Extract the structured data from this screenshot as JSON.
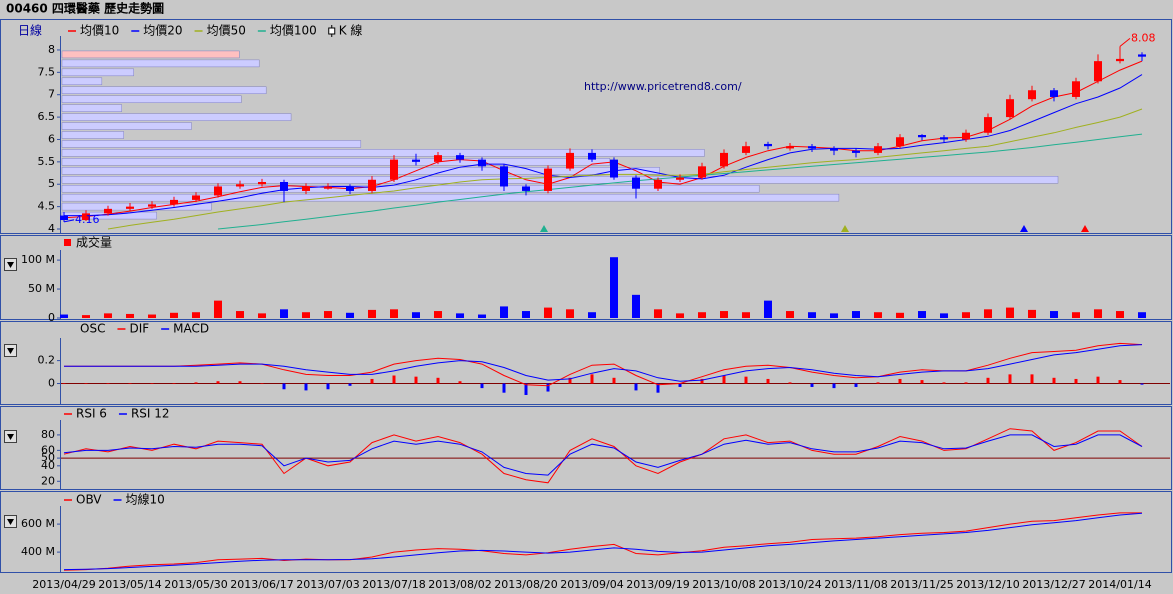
{
  "chart_data": [
    {
      "type": "candlestick",
      "title": "00460 四環醫藥  歷史走勢圖",
      "period": "日線",
      "watermark": "http://www.pricetrend8.com/",
      "candle_name": "K 線",
      "up_color": "#ff0000",
      "down_color": "#0000ff",
      "open": [
        4.3,
        4.2,
        4.35,
        4.45,
        4.5,
        4.55,
        4.65,
        4.75,
        4.95,
        5.0,
        5.05,
        4.85,
        4.9,
        4.95,
        4.85,
        5.1,
        5.55,
        5.5,
        5.65,
        5.55,
        5.4,
        4.95,
        4.85,
        5.35,
        5.7,
        5.55,
        5.15,
        4.9,
        5.1,
        5.15,
        5.4,
        5.7,
        5.9,
        5.8,
        5.85,
        5.8,
        5.75,
        5.7,
        5.85,
        6.1,
        6.05,
        6.0,
        6.15,
        6.5,
        6.9,
        7.1,
        6.95,
        7.3,
        7.75,
        7.9
      ],
      "high": [
        4.38,
        4.42,
        4.52,
        4.58,
        4.62,
        4.72,
        4.82,
        5.02,
        5.08,
        5.12,
        5.1,
        5.02,
        5.02,
        5.0,
        5.18,
        5.65,
        5.68,
        5.72,
        5.7,
        5.6,
        5.45,
        5.0,
        5.42,
        5.8,
        5.78,
        5.6,
        5.2,
        5.15,
        5.22,
        5.48,
        5.78,
        5.95,
        5.95,
        5.92,
        5.9,
        5.85,
        5.8,
        5.92,
        6.12,
        6.12,
        6.1,
        6.22,
        6.58,
        7.0,
        7.2,
        7.15,
        7.38,
        7.9,
        8.08,
        7.95
      ],
      "low": [
        4.16,
        4.18,
        4.3,
        4.4,
        4.45,
        4.5,
        4.6,
        4.7,
        4.9,
        4.95,
        4.6,
        4.78,
        4.88,
        4.78,
        4.8,
        5.05,
        5.42,
        5.45,
        5.48,
        5.3,
        4.85,
        4.75,
        4.8,
        5.3,
        5.5,
        5.1,
        4.68,
        4.85,
        5.05,
        5.1,
        5.35,
        5.65,
        5.78,
        5.75,
        5.72,
        5.65,
        5.6,
        5.65,
        5.8,
        5.98,
        5.92,
        5.95,
        6.1,
        6.45,
        6.85,
        6.85,
        6.9,
        7.25,
        7.7,
        7.75
      ],
      "close": [
        4.2,
        4.35,
        4.45,
        4.5,
        4.55,
        4.65,
        4.75,
        4.95,
        5.0,
        5.05,
        4.85,
        4.95,
        4.95,
        4.85,
        5.1,
        5.55,
        5.5,
        5.65,
        5.55,
        5.4,
        4.95,
        4.85,
        5.35,
        5.7,
        5.55,
        5.15,
        4.9,
        5.1,
        5.15,
        5.4,
        5.7,
        5.85,
        5.85,
        5.85,
        5.8,
        5.75,
        5.7,
        5.85,
        6.05,
        6.05,
        6.0,
        6.15,
        6.5,
        6.9,
        7.1,
        6.95,
        7.3,
        7.75,
        7.8,
        7.85
      ],
      "series": [
        {
          "name": "均價10",
          "color": "#ff0000",
          "values": [
            4.25,
            4.28,
            4.33,
            4.4,
            4.48,
            4.55,
            4.62,
            4.72,
            4.83,
            4.93,
            4.97,
            4.95,
            4.93,
            4.9,
            4.95,
            5.1,
            5.3,
            5.5,
            5.55,
            5.52,
            5.3,
            5.1,
            5.0,
            5.15,
            5.45,
            5.5,
            5.3,
            5.05,
            5.0,
            5.15,
            5.4,
            5.6,
            5.75,
            5.85,
            5.83,
            5.8,
            5.75,
            5.75,
            5.85,
            5.97,
            6.03,
            6.05,
            6.2,
            6.45,
            6.75,
            6.95,
            7.05,
            7.3,
            7.55,
            7.75
          ]
        },
        {
          "name": "均價20",
          "color": "#0000ff",
          "values": [
            4.3,
            4.3,
            4.32,
            4.36,
            4.42,
            4.48,
            4.55,
            4.62,
            4.7,
            4.8,
            4.88,
            4.92,
            4.95,
            4.95,
            4.93,
            4.98,
            5.1,
            5.25,
            5.38,
            5.45,
            5.45,
            5.35,
            5.2,
            5.15,
            5.2,
            5.3,
            5.35,
            5.25,
            5.15,
            5.12,
            5.2,
            5.38,
            5.55,
            5.7,
            5.78,
            5.8,
            5.8,
            5.78,
            5.8,
            5.87,
            5.93,
            6.0,
            6.07,
            6.2,
            6.4,
            6.6,
            6.8,
            6.95,
            7.15,
            7.45
          ]
        },
        {
          "name": "均價50",
          "color": "#a0b020",
          "values": [
            null,
            null,
            4.0,
            4.08,
            4.15,
            4.22,
            4.3,
            4.38,
            4.45,
            4.52,
            4.6,
            4.65,
            4.7,
            4.75,
            4.8,
            4.85,
            4.92,
            4.98,
            5.05,
            5.1,
            5.12,
            5.13,
            5.15,
            5.18,
            5.2,
            5.22,
            5.22,
            5.2,
            5.2,
            5.22,
            5.28,
            5.33,
            5.38,
            5.43,
            5.48,
            5.52,
            5.55,
            5.6,
            5.65,
            5.7,
            5.75,
            5.8,
            5.85,
            5.95,
            6.05,
            6.15,
            6.27,
            6.38,
            6.5,
            6.68
          ]
        },
        {
          "name": "均價100",
          "color": "#20b090",
          "values": [
            null,
            null,
            null,
            null,
            null,
            null,
            null,
            4.0,
            4.05,
            4.1,
            4.16,
            4.22,
            4.28,
            4.34,
            4.4,
            4.47,
            4.53,
            4.6,
            4.66,
            4.72,
            4.78,
            4.83,
            4.88,
            4.93,
            4.98,
            5.03,
            5.08,
            5.12,
            5.16,
            5.2,
            5.24,
            5.28,
            5.32,
            5.36,
            5.4,
            5.44,
            5.48,
            5.52,
            5.56,
            5.6,
            5.64,
            5.68,
            5.72,
            5.77,
            5.82,
            5.88,
            5.94,
            6.0,
            6.06,
            6.12
          ]
        }
      ],
      "volume_profile": {
        "prices": [
          4.3,
          4.5,
          4.7,
          4.9,
          5.1,
          5.3,
          5.5,
          5.7,
          5.9,
          6.1,
          6.3,
          6.5,
          6.7,
          6.9,
          7.1,
          7.3,
          7.5,
          7.7,
          7.9
        ],
        "values": [
          95,
          150,
          780,
          700,
          1000,
          600,
          550,
          645,
          300,
          62,
          130,
          230,
          60,
          180,
          205,
          40,
          72,
          198,
          178
        ],
        "color": "#ccccff",
        "current_color": "#ffc0c0"
      },
      "ylim": [
        4,
        8.2
      ],
      "yticks": [
        4,
        4.5,
        5,
        5.5,
        6,
        6.5,
        7,
        7.5,
        8
      ]
    },
    {
      "type": "bar",
      "series": [
        {
          "name": "成交量",
          "color": "#ff0000",
          "values": [
            6,
            5,
            8,
            7,
            6,
            9,
            10,
            30,
            12,
            8,
            15,
            10,
            12,
            9,
            14,
            15,
            10,
            12,
            8,
            6,
            20,
            12,
            18,
            15,
            10,
            105,
            40,
            15,
            8,
            10,
            12,
            10,
            30,
            12,
            10,
            8,
            12,
            10,
            9,
            12,
            8,
            10,
            15,
            18,
            14,
            12,
            10,
            15,
            12,
            10
          ]
        }
      ],
      "down_color": "#0000ff",
      "ylim": [
        0,
        114
      ],
      "yticks": [
        0,
        {
          "value": 50,
          "label": "50 M"
        },
        {
          "value": 100,
          "label": "100 M"
        }
      ]
    },
    {
      "type": "line",
      "series": [
        {
          "name": "OSC",
          "style": "bar",
          "color": "#ff0000",
          "negative_color": "#0000ff",
          "values": [
            0,
            0,
            0,
            0,
            0,
            0,
            0.01,
            0.02,
            0.02,
            0,
            -0.05,
            -0.06,
            -0.05,
            -0.02,
            0.04,
            0.07,
            0.06,
            0.05,
            0.02,
            -0.04,
            -0.08,
            -0.1,
            -0.07,
            0.05,
            0.08,
            0.05,
            -0.06,
            -0.08,
            -0.03,
            0.04,
            0.07,
            0.06,
            0.04,
            0.01,
            -0.03,
            -0.04,
            -0.03,
            0.01,
            0.04,
            0.03,
            0.01,
            0.01,
            0.05,
            0.08,
            0.08,
            0.05,
            0.04,
            0.06,
            0.03,
            -0.01
          ]
        },
        {
          "name": "DIF",
          "color": "#ff0000",
          "values": [
            0.15,
            0.15,
            0.15,
            0.15,
            0.15,
            0.15,
            0.16,
            0.17,
            0.18,
            0.17,
            0.12,
            0.08,
            0.07,
            0.07,
            0.1,
            0.17,
            0.2,
            0.22,
            0.21,
            0.17,
            0.07,
            -0.01,
            -0.02,
            0.08,
            0.16,
            0.17,
            0.07,
            -0.01,
            0.0,
            0.06,
            0.12,
            0.15,
            0.16,
            0.14,
            0.1,
            0.07,
            0.05,
            0.06,
            0.1,
            0.12,
            0.11,
            0.11,
            0.16,
            0.22,
            0.27,
            0.28,
            0.29,
            0.33,
            0.35,
            0.34
          ]
        },
        {
          "name": "MACD",
          "color": "#0000ff",
          "values": [
            0.15,
            0.15,
            0.15,
            0.15,
            0.15,
            0.15,
            0.15,
            0.16,
            0.17,
            0.17,
            0.15,
            0.12,
            0.1,
            0.08,
            0.08,
            0.11,
            0.15,
            0.18,
            0.2,
            0.19,
            0.14,
            0.07,
            0.03,
            0.04,
            0.09,
            0.13,
            0.11,
            0.05,
            0.02,
            0.03,
            0.07,
            0.11,
            0.13,
            0.14,
            0.12,
            0.09,
            0.07,
            0.06,
            0.08,
            0.1,
            0.11,
            0.11,
            0.13,
            0.17,
            0.21,
            0.25,
            0.27,
            0.3,
            0.33,
            0.34
          ]
        }
      ],
      "reference_line": 0,
      "reference_color": "#800000",
      "ylim": [
        -0.17,
        0.38
      ],
      "yticks": [
        0,
        0.2
      ]
    },
    {
      "type": "line",
      "series": [
        {
          "name": "RSI 6",
          "color": "#ff0000",
          "values": [
            55,
            62,
            58,
            65,
            60,
            68,
            62,
            72,
            70,
            68,
            30,
            50,
            40,
            45,
            70,
            80,
            72,
            78,
            70,
            55,
            30,
            22,
            18,
            60,
            75,
            65,
            40,
            30,
            45,
            55,
            75,
            80,
            70,
            72,
            60,
            55,
            55,
            65,
            78,
            72,
            60,
            62,
            75,
            88,
            85,
            60,
            70,
            85,
            85,
            65
          ]
        },
        {
          "name": "RSI 12",
          "color": "#0000ff",
          "values": [
            57,
            60,
            60,
            63,
            62,
            65,
            64,
            68,
            68,
            66,
            40,
            50,
            45,
            47,
            62,
            72,
            68,
            72,
            68,
            58,
            38,
            30,
            28,
            55,
            68,
            63,
            45,
            38,
            47,
            55,
            68,
            73,
            68,
            70,
            62,
            58,
            58,
            63,
            72,
            70,
            62,
            63,
            72,
            80,
            80,
            65,
            68,
            80,
            80,
            65
          ]
        }
      ],
      "reference_line": 50,
      "reference_color": "#800000",
      "ylim": [
        10,
        98
      ],
      "yticks": [
        20,
        40,
        50,
        60,
        80
      ]
    },
    {
      "type": "line",
      "series": [
        {
          "name": "OBV",
          "color": "#ff0000",
          "values": [
            270,
            275,
            285,
            300,
            310,
            315,
            325,
            345,
            350,
            355,
            340,
            350,
            345,
            345,
            365,
            400,
            415,
            425,
            420,
            410,
            390,
            380,
            395,
            420,
            440,
            455,
            390,
            380,
            395,
            410,
            435,
            445,
            460,
            470,
            490,
            495,
            500,
            510,
            525,
            535,
            540,
            550,
            575,
            600,
            620,
            625,
            645,
            665,
            680,
            680
          ]
        },
        {
          "name": "均線10",
          "color": "#0000ff",
          "values": [
            275,
            277,
            282,
            290,
            298,
            306,
            315,
            325,
            335,
            342,
            345,
            345,
            346,
            347,
            352,
            365,
            380,
            395,
            408,
            412,
            408,
            400,
            393,
            400,
            415,
            430,
            420,
            405,
            398,
            400,
            415,
            430,
            445,
            455,
            468,
            480,
            490,
            500,
            510,
            520,
            530,
            540,
            555,
            575,
            595,
            610,
            625,
            645,
            665,
            678
          ]
        }
      ],
      "ylim": [
        265,
        715
      ],
      "yticks": [
        {
          "value": 400,
          "label": "400 M"
        },
        {
          "value": 600,
          "label": "600 M"
        }
      ],
      "categories": [
        "2013/04/29",
        null,
        null,
        "2013/05/14",
        null,
        null,
        "2013/05/30",
        null,
        null,
        "2013/06/17",
        null,
        null,
        "2013/07/03",
        null,
        null,
        "2013/07/18",
        null,
        null,
        "2013/08/02",
        null,
        null,
        "2013/08/20",
        null,
        null,
        "2013/09/04",
        null,
        null,
        "2013/09/19",
        null,
        null,
        "2013/10/08",
        null,
        null,
        "2013/10/24",
        null,
        null,
        "2013/11/08",
        null,
        null,
        "2013/11/25",
        null,
        null,
        "2013/12/10",
        null,
        null,
        "2013/12/27",
        null,
        null,
        "2014/01/14",
        null
      ]
    }
  ]
}
